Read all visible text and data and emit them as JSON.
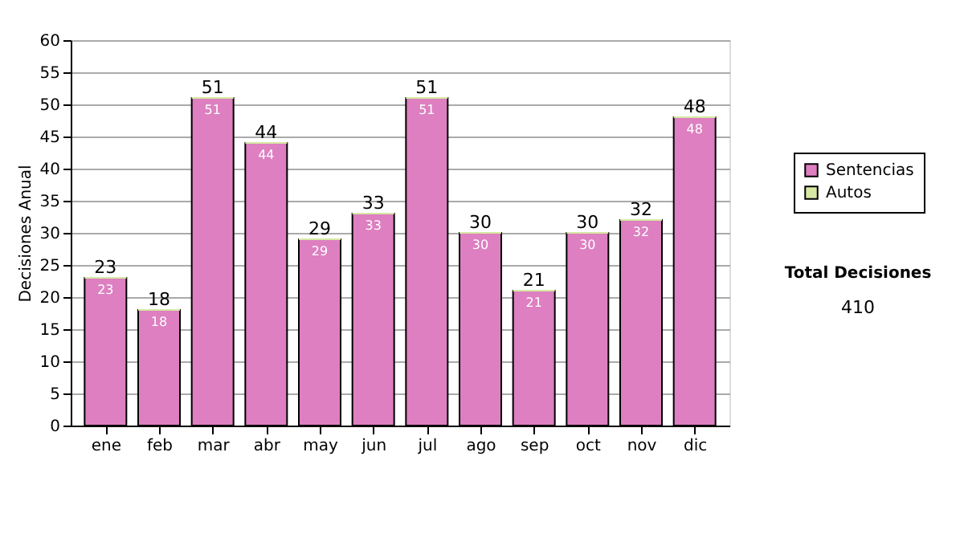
{
  "chart_data": {
    "type": "bar",
    "stacked": true,
    "ylabel": "Decisiones Anual",
    "categories": [
      "ene",
      "feb",
      "mar",
      "abr",
      "may",
      "jun",
      "jul",
      "ago",
      "sep",
      "oct",
      "nov",
      "dic"
    ],
    "series": [
      {
        "name": "Sentencias",
        "color": "#dd7fc0",
        "values": [
          23,
          18,
          51,
          44,
          29,
          33,
          51,
          30,
          21,
          30,
          32,
          48
        ],
        "value_labels": [
          "23",
          "18",
          "51",
          "44",
          "29",
          "33",
          "51",
          "30",
          "21",
          "30",
          "32",
          "48"
        ]
      },
      {
        "name": "Autos",
        "color": "#d6e8a4",
        "values": [
          0,
          0,
          0,
          0,
          0,
          0,
          0,
          0,
          0,
          0,
          0,
          0
        ]
      }
    ],
    "totals": [
      "23",
      "18",
      "51",
      "44",
      "29",
      "33",
      "51",
      "30",
      "21",
      "30",
      "32",
      "48"
    ],
    "ylim": [
      0,
      60
    ],
    "yticks": [
      0,
      5,
      10,
      15,
      20,
      25,
      30,
      35,
      40,
      45,
      50,
      55,
      60
    ],
    "grid": "y",
    "legend": "right",
    "annotations": [
      "Total Decisiones",
      "410"
    ]
  }
}
